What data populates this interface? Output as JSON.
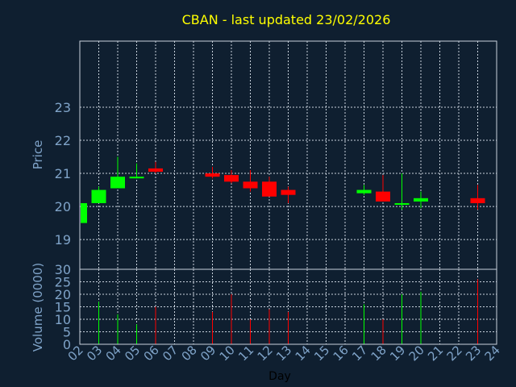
{
  "chart_data": {
    "type": "candlestick",
    "title": "CBAN - last updated 23/02/2026",
    "xlabel": "Day",
    "colors": {
      "background": "#0f1f30",
      "up": "#00ff00",
      "down": "#ff0000",
      "grid": "#c8d2dc",
      "title": "#ffff00",
      "tick": "#7fa3c8"
    },
    "x_ticks": [
      "02",
      "03",
      "04",
      "05",
      "06",
      "07",
      "08",
      "09",
      "10",
      "11",
      "12",
      "13",
      "14",
      "15",
      "16",
      "17",
      "18",
      "19",
      "20",
      "21",
      "22",
      "23",
      "24"
    ],
    "xlim": [
      2,
      24
    ],
    "grid": true,
    "price_panel": {
      "ylabel": "Price",
      "ylim": [
        18.1,
        25.0
      ],
      "y_ticks": [
        "19",
        "20",
        "21",
        "22",
        "23"
      ],
      "candles": [
        {
          "day": 2,
          "open": 19.5,
          "high": 20.1,
          "low": 19.5,
          "close": 20.1,
          "volume": 26
        },
        {
          "day": 3,
          "open": 20.1,
          "high": 20.6,
          "low": 20.1,
          "close": 20.5,
          "volume": 17
        },
        {
          "day": 4,
          "open": 20.55,
          "high": 21.5,
          "low": 20.55,
          "close": 20.9,
          "volume": 12
        },
        {
          "day": 5,
          "open": 20.85,
          "high": 21.3,
          "low": 20.85,
          "close": 20.9,
          "volume": 8
        },
        {
          "day": 6,
          "open": 21.15,
          "high": 21.35,
          "low": 21.0,
          "close": 21.05,
          "volume": 15
        },
        {
          "day": 9,
          "open": 21.0,
          "high": 21.2,
          "low": 20.85,
          "close": 20.9,
          "volume": 13
        },
        {
          "day": 10,
          "open": 20.95,
          "high": 21.1,
          "low": 20.7,
          "close": 20.75,
          "volume": 20
        },
        {
          "day": 11,
          "open": 20.75,
          "high": 21.1,
          "low": 20.45,
          "close": 20.55,
          "volume": 10
        },
        {
          "day": 12,
          "open": 20.75,
          "high": 20.9,
          "low": 20.3,
          "close": 20.3,
          "volume": 14
        },
        {
          "day": 13,
          "open": 20.5,
          "high": 20.6,
          "low": 20.1,
          "close": 20.35,
          "volume": 13
        },
        {
          "day": 17,
          "open": 20.4,
          "high": 20.65,
          "low": 20.35,
          "close": 20.5,
          "volume": 16
        },
        {
          "day": 18,
          "open": 20.45,
          "high": 20.95,
          "low": 20.15,
          "close": 20.15,
          "volume": 10
        },
        {
          "day": 19,
          "open": 20.05,
          "high": 21.0,
          "low": 19.9,
          "close": 20.1,
          "volume": 20
        },
        {
          "day": 20,
          "open": 20.15,
          "high": 20.45,
          "low": 19.95,
          "close": 20.25,
          "volume": 21
        },
        {
          "day": 23,
          "open": 20.25,
          "high": 20.65,
          "low": 19.9,
          "close": 20.1,
          "volume": 26
        }
      ]
    },
    "volume_panel": {
      "ylabel": "Volume (0000)",
      "ylim": [
        0,
        30
      ],
      "y_ticks": [
        "0",
        "5",
        "10",
        "15",
        "20",
        "25",
        "30"
      ]
    }
  }
}
